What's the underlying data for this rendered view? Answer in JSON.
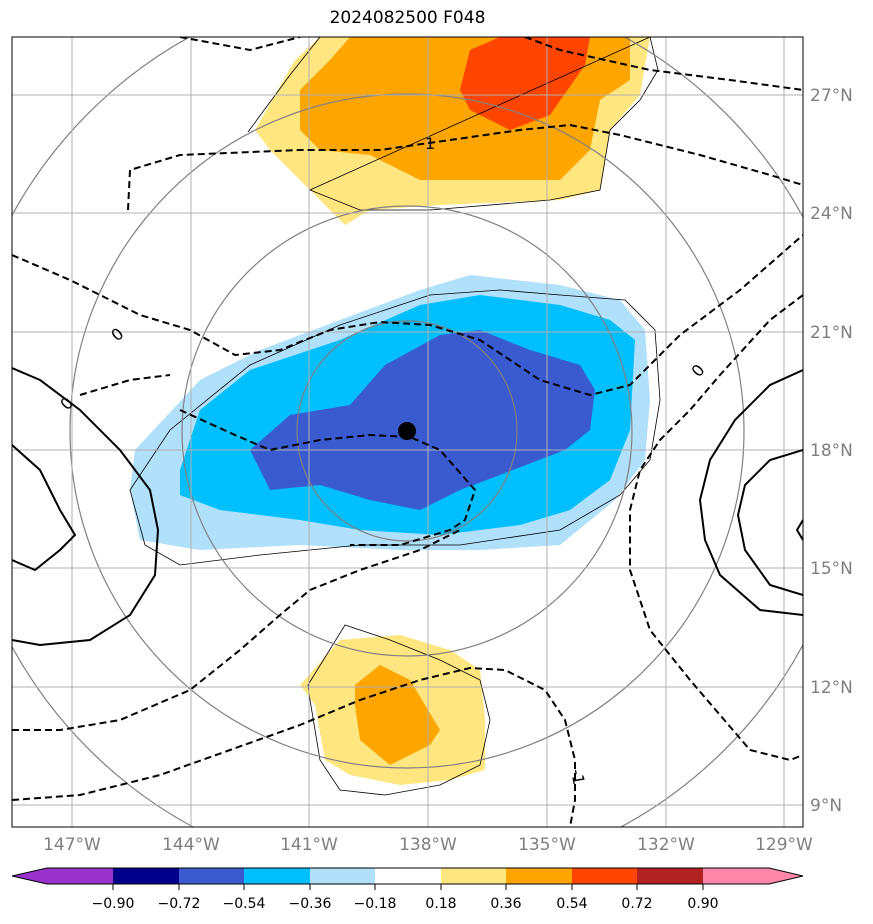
{
  "title": "2024082500 F048",
  "map": {
    "lat_labels": [
      "27°N",
      "24°N",
      "21°N",
      "18°N",
      "15°N",
      "12°N",
      "9°N"
    ],
    "lon_labels": [
      "147°W",
      "144°W",
      "141°W",
      "138°W",
      "135°W",
      "132°W",
      "129°W"
    ],
    "contour_labels": [
      "1",
      "0",
      "0",
      "0",
      "-1"
    ],
    "storm_marker": "filled-circle",
    "colors": {
      "neg_strong": "#3a5bcf",
      "neg_mid": "#00bfff",
      "neg_weak": "#b0e0fa",
      "pos_weak": "#ffe680",
      "pos_mid": "#ffa500",
      "pos_strong": "#ff4500"
    }
  },
  "colorbar": {
    "tick_labels": [
      "−0.90",
      "−0.72",
      "−0.54",
      "−0.36",
      "−0.18",
      "0.18",
      "0.36",
      "0.54",
      "0.72",
      "0.90"
    ],
    "colors": [
      "#9932cc",
      "#00008b",
      "#3a5bcf",
      "#00bfff",
      "#b0e0fa",
      "#ffffff",
      "#ffe680",
      "#ffa500",
      "#ff4500",
      "#b22222",
      "#ff88aa"
    ]
  }
}
